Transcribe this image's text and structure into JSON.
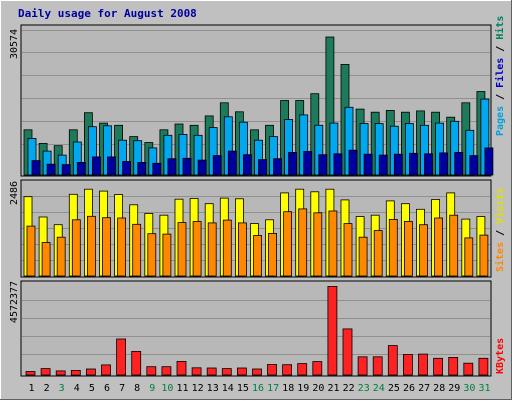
{
  "chart_data": {
    "title": "Daily usage for August 2008",
    "type": "bar",
    "days": [
      "1",
      "2",
      "3",
      "4",
      "5",
      "6",
      "7",
      "8",
      "9",
      "10",
      "11",
      "12",
      "13",
      "14",
      "15",
      "16",
      "17",
      "18",
      "19",
      "20",
      "21",
      "22",
      "23",
      "24",
      "25",
      "26",
      "27",
      "28",
      "29",
      "30",
      "31"
    ],
    "weekend_days": [
      "3",
      "9",
      "10",
      "16",
      "17",
      "23",
      "24",
      "30",
      "31"
    ],
    "panels": [
      {
        "name": "top",
        "axis_max_label": "30574",
        "ymax": 33000,
        "legend": [
          {
            "label": "Pages",
            "color": "#00a0e0"
          },
          {
            "label": "Files",
            "color": "#0000c0"
          },
          {
            "label": "Hits",
            "color": "#007f5f"
          }
        ],
        "series": [
          {
            "name": "Hits",
            "color": "#1d7a5a",
            "values": [
              10000,
              7000,
              6500,
              10000,
              13800,
              11500,
              11000,
              8500,
              7200,
              10000,
              11300,
              11000,
              13100,
              16000,
              14000,
              10000,
              11000,
              16500,
              16500,
              18000,
              30574,
              24500,
              14600,
              13900,
              14300,
              13900,
              14200,
              13900,
              12800,
              16000,
              18500
            ]
          },
          {
            "name": "Files",
            "color": "#00a8f0",
            "values": [
              8100,
              5300,
              4400,
              7300,
              10700,
              10900,
              7700,
              7600,
              6000,
              8800,
              9000,
              8800,
              10500,
              12900,
              11700,
              7700,
              8500,
              12300,
              13300,
              11000,
              11500,
              15000,
              11400,
              11400,
              10800,
              11400,
              11000,
              11500,
              11900,
              9900,
              16800
            ]
          },
          {
            "name": "Pages",
            "color": "#0000a0",
            "values": [
              3200,
              2400,
              2300,
              2800,
              4000,
              4000,
              3000,
              2800,
              2600,
              3600,
              3700,
              3300,
              4300,
              5300,
              4500,
              3400,
              3600,
              5000,
              5200,
              4500,
              4700,
              5500,
              4600,
              4400,
              4600,
              4800,
              4700,
              4900,
              5000,
              4300,
              6000
            ]
          }
        ]
      },
      {
        "name": "middle",
        "axis_max_label": "2486",
        "ymax": 2720,
        "legend": [
          {
            "label": "Sites",
            "color": "#ff8800"
          },
          {
            "label": "Visits",
            "color": "#e0e000"
          }
        ],
        "series": [
          {
            "name": "Visits",
            "color": "#ffff00",
            "values": [
              2270,
              1690,
              1470,
              2340,
              2486,
              2430,
              2330,
              2040,
              1790,
              1740,
              2200,
              2220,
              2070,
              2230,
              2210,
              1500,
              1610,
              2380,
              2486,
              2410,
              2486,
              2180,
              1700,
              1740,
              2150,
              2070,
              1910,
              2190,
              2380,
              1630,
              1700
            ]
          },
          {
            "name": "Sites",
            "color": "#ff8800",
            "values": [
              1430,
              960,
              1110,
              1610,
              1710,
              1670,
              1660,
              1480,
              1210,
              1200,
              1530,
              1560,
              1520,
              1600,
              1520,
              1160,
              1220,
              1840,
              1920,
              1810,
              1860,
              1500,
              1110,
              1300,
              1620,
              1560,
              1470,
              1660,
              1740,
              1090,
              1170
            ]
          }
        ]
      },
      {
        "name": "bottom",
        "axis_max_label": "4572377",
        "ymax": 4800000,
        "legend": [
          {
            "label": "KBytes",
            "color": "#ff0000"
          }
        ],
        "series": [
          {
            "name": "KBytes",
            "color": "#ff2222",
            "values": [
              180000,
              330000,
              210000,
              240000,
              310000,
              520000,
              1860000,
              1220000,
              430000,
              430000,
              700000,
              370000,
              360000,
              330000,
              360000,
              310000,
              540000,
              530000,
              590000,
              690000,
              4572377,
              2380000,
              940000,
              940000,
              1520000,
              1060000,
              1080000,
              860000,
              910000,
              610000,
              860000
            ]
          }
        ]
      }
    ]
  }
}
